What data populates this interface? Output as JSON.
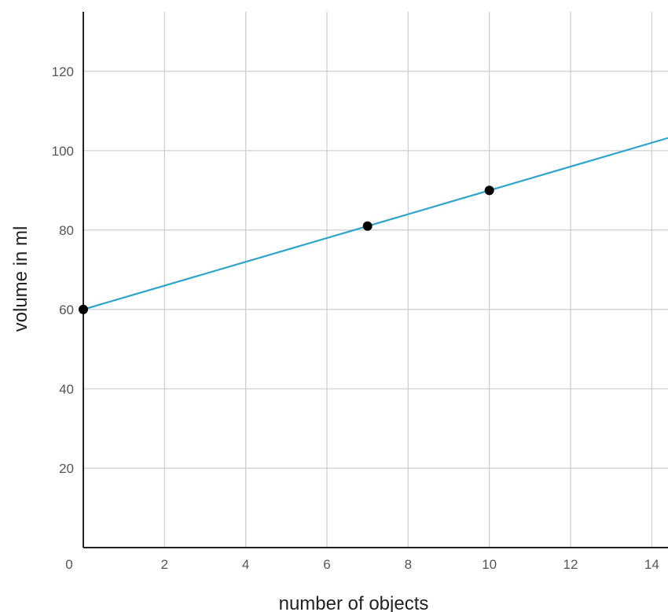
{
  "chart_data": {
    "type": "scatter",
    "title": "",
    "xlabel": "number of objects",
    "ylabel": "volume in ml",
    "xlim": [
      0,
      14.4
    ],
    "ylim": [
      0,
      135
    ],
    "grid": true,
    "x_ticks": [
      0,
      2,
      4,
      6,
      8,
      10,
      12,
      14
    ],
    "y_ticks": [
      20,
      40,
      60,
      80,
      100,
      120
    ],
    "series": [
      {
        "kind": "points",
        "color": "#000000",
        "points": [
          {
            "x": 0,
            "y": 60
          },
          {
            "x": 7,
            "y": 81
          },
          {
            "x": 10,
            "y": 90
          }
        ]
      },
      {
        "kind": "line",
        "color": "#2fa4cc",
        "points": [
          {
            "x": 0,
            "y": 60
          },
          {
            "x": 14.4,
            "y": 103.2
          }
        ]
      }
    ]
  }
}
